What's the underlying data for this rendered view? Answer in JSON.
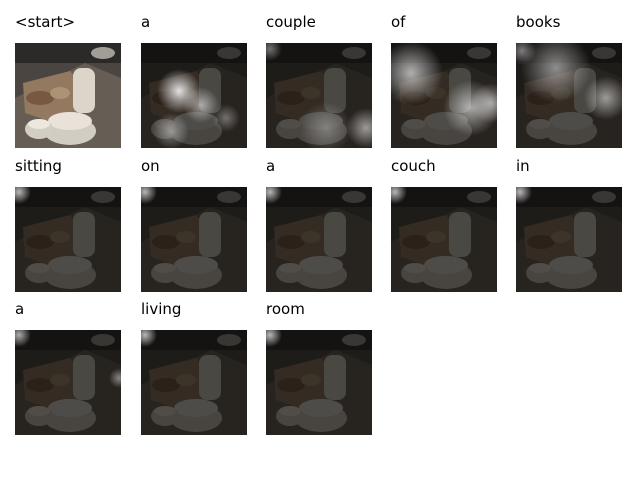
{
  "title": "",
  "tokens": [
    {
      "word": "<start>",
      "attention": "none"
    },
    {
      "word": "a",
      "attention": "scattered"
    },
    {
      "word": "couple",
      "attention": "bottom-right"
    },
    {
      "word": "of",
      "attention": "center-left"
    },
    {
      "word": "books",
      "attention": "upper-band"
    },
    {
      "word": "sitting",
      "attention": "top-left"
    },
    {
      "word": "on",
      "attention": "top-left"
    },
    {
      "word": "a",
      "attention": "top-left"
    },
    {
      "word": "couch",
      "attention": "top-left"
    },
    {
      "word": "in",
      "attention": "top-left"
    },
    {
      "word": "a",
      "attention": "top-left-right"
    },
    {
      "word": "living",
      "attention": "top-left"
    },
    {
      "word": "room",
      "attention": "top-left"
    }
  ]
}
